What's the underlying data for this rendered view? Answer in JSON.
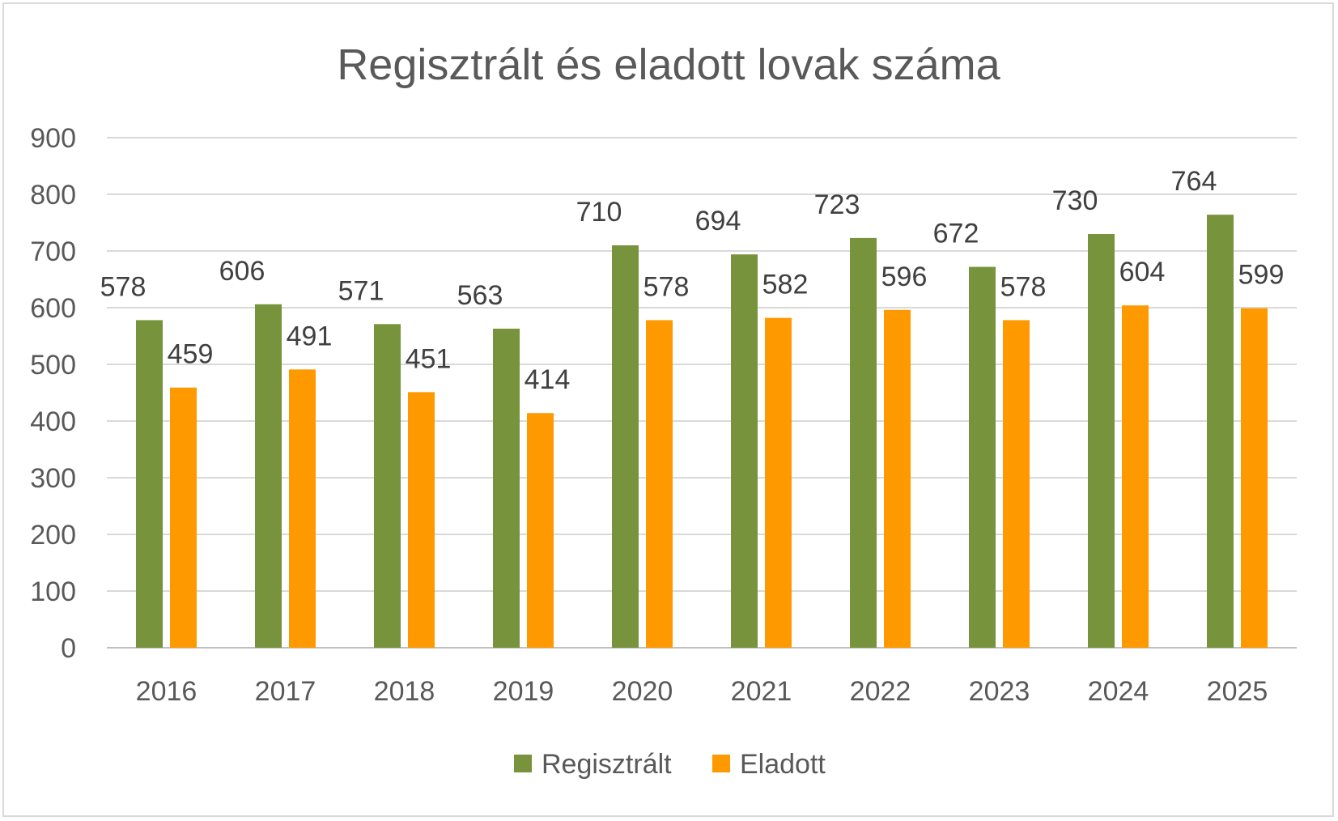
{
  "chart_data": {
    "type": "bar",
    "title": "Regisztrált és eladott lovak száma",
    "categories": [
      "2016",
      "2017",
      "2018",
      "2019",
      "2020",
      "2021",
      "2022",
      "2023",
      "2024",
      "2025"
    ],
    "series": [
      {
        "name": "Regisztrált",
        "color": "#77933c",
        "values": [
          578,
          606,
          571,
          563,
          710,
          694,
          723,
          672,
          730,
          764
        ]
      },
      {
        "name": "Eladott",
        "color": "#ff9900",
        "values": [
          459,
          491,
          451,
          414,
          578,
          582,
          596,
          578,
          604,
          599
        ]
      }
    ],
    "y_ticks": [
      0,
      100,
      200,
      300,
      400,
      500,
      600,
      700,
      800,
      900
    ],
    "ylim": [
      0,
      900
    ],
    "grid": true,
    "data_labels": true,
    "legend_position": "bottom"
  }
}
